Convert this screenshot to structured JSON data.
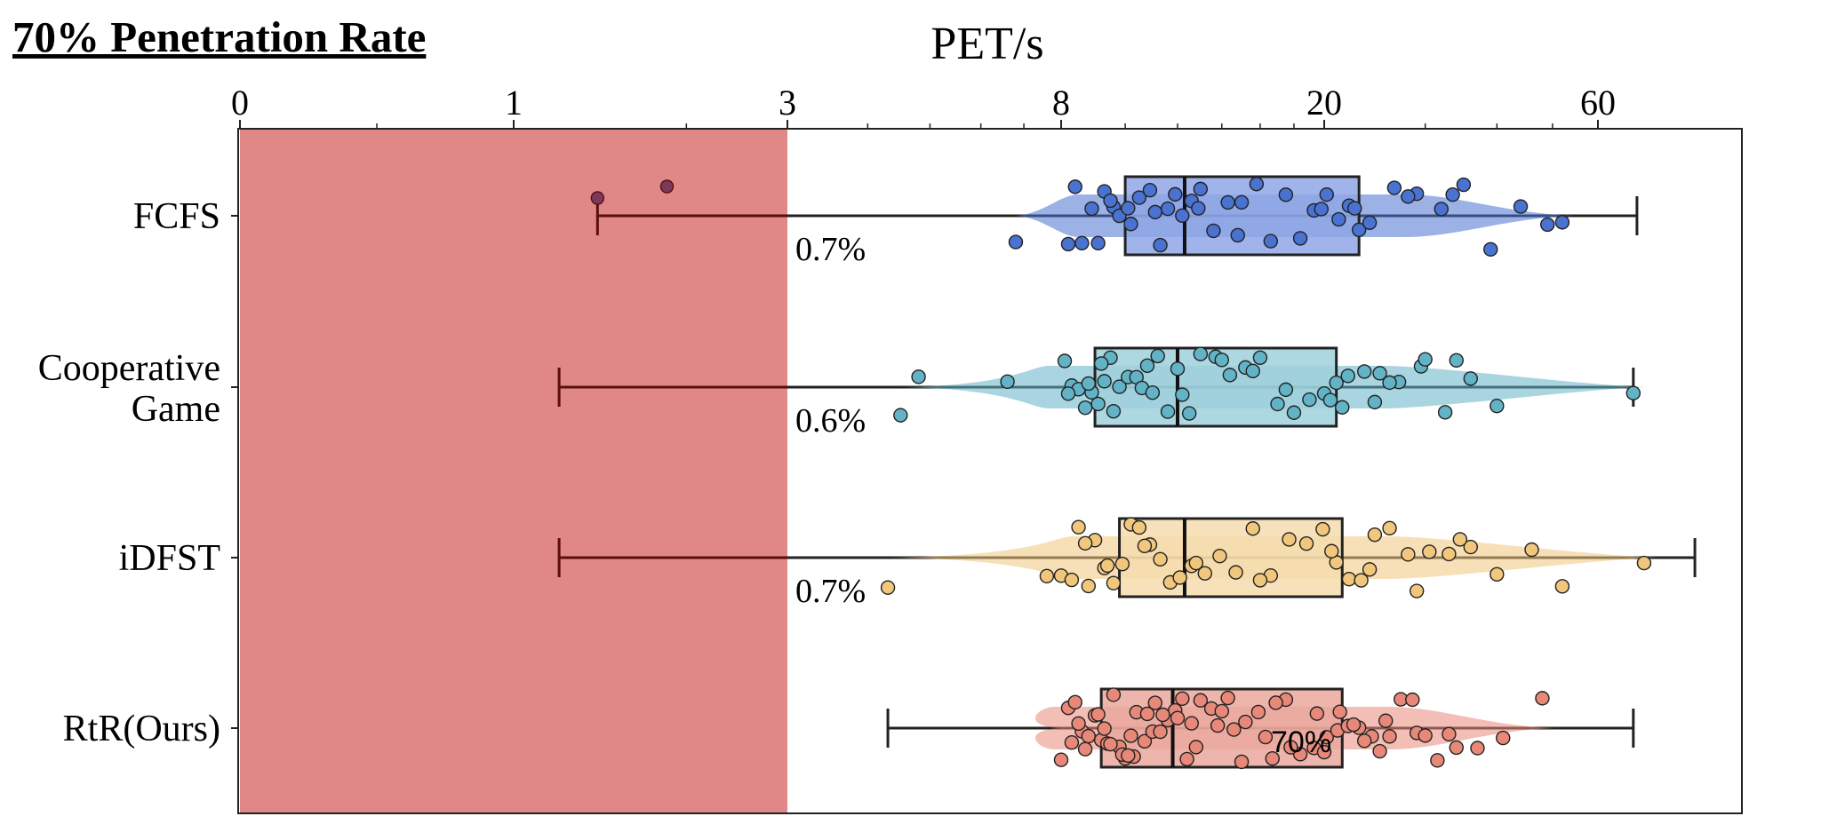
{
  "title": "70% Penetration Rate",
  "chart_data": {
    "type": "box-violin-strip",
    "xlabel": "PET/s",
    "x_scale": "symlog",
    "x_ticks": [
      "0",
      "1",
      "3",
      "8",
      "20",
      "60"
    ],
    "x_tick_values": [
      0,
      1,
      3,
      8,
      20,
      60
    ],
    "x_range": [
      0,
      150
    ],
    "shaded_region": {
      "from": 0,
      "to": 3,
      "color": "#e08787"
    },
    "series": [
      {
        "name": "FCFS",
        "color": "#4a72d1",
        "whisker_low": 1.4,
        "q1": 10.0,
        "median": 12.3,
        "q3": 23.0,
        "whisker_high": 70,
        "outliers": [
          1.4,
          1.85
        ],
        "percent_label": "0.7%",
        "points": [
          6.8,
          8.2,
          8.4,
          8.9,
          9.1,
          9.3,
          9.6,
          9.8,
          10.2,
          10.5,
          10.9,
          11.3,
          11.6,
          11.9,
          12.2,
          12.6,
          13.0,
          13.6,
          14.3,
          15.0,
          15.8,
          16.6,
          17.5,
          18.4,
          19.3,
          20.2,
          21.2,
          22.1,
          23.0,
          24.0,
          26.5,
          29.0,
          32.0,
          35.0,
          39.0,
          44.0,
          49.0,
          52.0,
          8.6,
          9.5,
          10.1,
          11.1,
          12.9,
          14.8,
          19.8,
          22.6,
          28.0,
          33.5
        ]
      },
      {
        "name": "Cooperative Game",
        "color": "#62b3c6",
        "whisker_low": 1.2,
        "q1": 9.0,
        "median": 12.0,
        "q3": 21.0,
        "whisker_high": 69,
        "outliers": [],
        "percent_label": "0.6%",
        "points": [
          4.5,
          4.8,
          6.6,
          8.1,
          8.3,
          8.5,
          8.7,
          8.9,
          9.1,
          9.3,
          9.5,
          9.8,
          10.1,
          10.4,
          10.8,
          11.2,
          11.6,
          12.0,
          12.5,
          13.0,
          13.7,
          14.4,
          15.2,
          16.0,
          17.0,
          18.0,
          19.0,
          20.0,
          21.0,
          22.0,
          23.5,
          25.0,
          27.0,
          29.5,
          32.5,
          36.0,
          40.0,
          69.0,
          8.2,
          8.8,
          9.6,
          10.6,
          12.2,
          14.0,
          17.5,
          20.5,
          24.5,
          30.0,
          34.0,
          9.2,
          11.0,
          15.6,
          21.5,
          26.0
        ]
      },
      {
        "name": "iDFST",
        "color": "#f1c77e",
        "whisker_low": 1.2,
        "q1": 9.8,
        "median": 12.3,
        "q3": 21.5,
        "whisker_high": 88,
        "outliers": [],
        "percent_label": "0.7%",
        "points": [
          4.3,
          7.6,
          8.0,
          8.3,
          8.5,
          8.8,
          9.0,
          9.3,
          9.6,
          9.9,
          10.2,
          10.5,
          10.9,
          11.3,
          11.7,
          12.1,
          12.6,
          13.2,
          13.9,
          14.7,
          15.6,
          16.6,
          17.7,
          18.8,
          19.9,
          21.0,
          22.1,
          23.2,
          24.5,
          26.0,
          28.0,
          30.5,
          33.0,
          36.0,
          40.0,
          46.0,
          52.0,
          72.0,
          8.7,
          9.4,
          10.7,
          12.8,
          16.0,
          20.6,
          24.0,
          29.0,
          34.5
        ]
      },
      {
        "name": "RtR(Ours)",
        "color": "#e88878",
        "whisker_low": 4.3,
        "q1": 9.2,
        "median": 11.8,
        "q3": 21.5,
        "whisker_high": 69,
        "outliers": [],
        "percent_label": "70%",
        "points": [
          8.0,
          8.2,
          8.4,
          8.6,
          8.8,
          9.0,
          9.2,
          9.4,
          9.6,
          9.8,
          10.0,
          10.2,
          10.4,
          10.7,
          11.0,
          11.3,
          11.6,
          11.9,
          12.2,
          12.6,
          13.0,
          13.5,
          14.0,
          14.6,
          15.2,
          15.9,
          16.7,
          17.5,
          18.4,
          19.3,
          20.2,
          21.1,
          22.0,
          23.0,
          24.2,
          25.6,
          27.2,
          29.0,
          31.5,
          34.0,
          37.0,
          41.0,
          48.0,
          8.3,
          8.7,
          9.1,
          9.5,
          9.9,
          10.3,
          10.8,
          11.4,
          12.0,
          12.8,
          13.8,
          15.0,
          16.3,
          17.8,
          19.5,
          21.3,
          23.5,
          26.0,
          28.5,
          33.0,
          8.5,
          9.3,
          10.1,
          11.1,
          12.4,
          14.3,
          16.9,
          20.0,
          22.5,
          25.0,
          30.0
        ]
      }
    ],
    "grid": false
  }
}
